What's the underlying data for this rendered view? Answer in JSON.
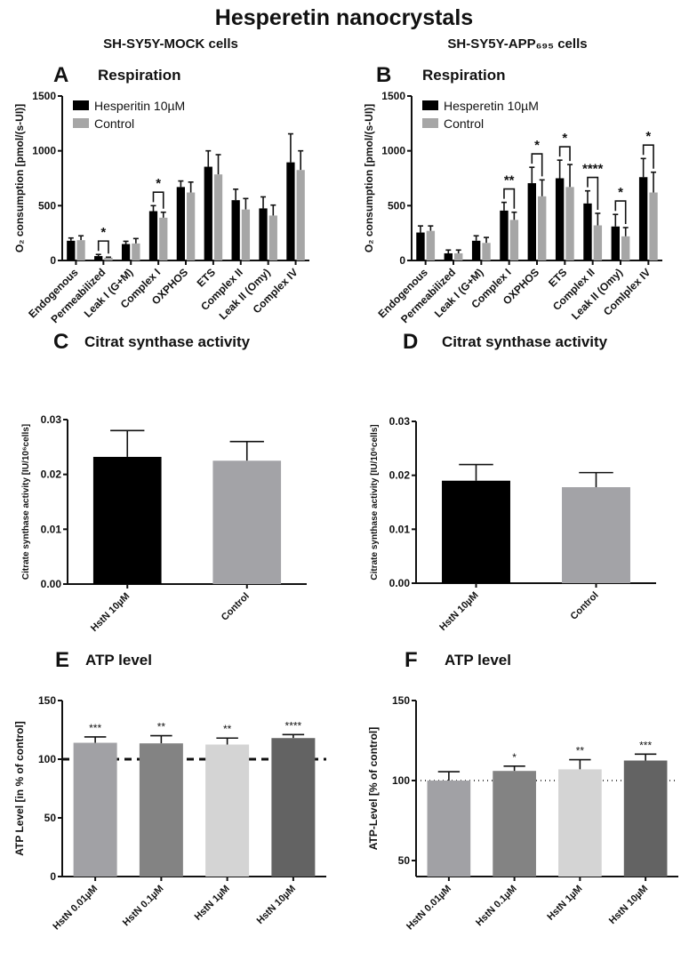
{
  "figure": {
    "title": "Hesperetin nanocrystals",
    "left_column": "SH-SY5Y-MOCK cells",
    "right_column": "SH-SY5Y-APP₆₉₅ cells"
  },
  "chart_data": [
    {
      "panel": "A",
      "title": "Respiration",
      "type": "bar",
      "ylabel": "O₂ consumption [pmol/(s-UI)]",
      "ylim": [
        0,
        1500
      ],
      "yticks": [
        "0",
        "500",
        "1000",
        "1500"
      ],
      "ytick_values": [
        0,
        500,
        1000,
        1500
      ],
      "legend": "top-left",
      "categories": [
        "Endogenous",
        "Permeabilized",
        "Leak I (G+M)",
        "Complex I",
        "OXPHOS",
        "ETS",
        "Complex II",
        "Leak II (Omy)",
        "Complex IV"
      ],
      "series": [
        {
          "name": "Hesperitin 10µM",
          "color": "#000000",
          "values": [
            180,
            40,
            150,
            450,
            670,
            855,
            550,
            475,
            895
          ],
          "error_top": [
            205,
            55,
            175,
            500,
            725,
            1000,
            650,
            580,
            1155
          ]
        },
        {
          "name": "Control",
          "color": "#a6a6a6",
          "values": [
            185,
            25,
            155,
            390,
            620,
            785,
            465,
            410,
            825
          ],
          "error_top": [
            225,
            30,
            200,
            440,
            715,
            965,
            565,
            505,
            1000
          ]
        }
      ],
      "significance": [
        "",
        "*",
        "",
        "*",
        "",
        "",
        "",
        "",
        ""
      ]
    },
    {
      "panel": "B",
      "title": "Respiration",
      "type": "bar",
      "ylabel": "O₂ consumption [pmol/(s-UI)]",
      "ylim": [
        0,
        1500
      ],
      "yticks": [
        "0",
        "500",
        "1000",
        "1500"
      ],
      "ytick_values": [
        0,
        500,
        1000,
        1500
      ],
      "legend": "top-left",
      "categories": [
        "Endogenous",
        "Permeabilized",
        "Leak I (G+M)",
        "Complex I",
        "OXPHOS",
        "ETS",
        "Complex II",
        "Leak II (Omy)",
        "Comlplex IV"
      ],
      "series": [
        {
          "name": "Hesperetin 10µM",
          "color": "#000000",
          "values": [
            255,
            65,
            180,
            455,
            705,
            750,
            520,
            310,
            760
          ],
          "error_top": [
            315,
            95,
            225,
            530,
            850,
            915,
            635,
            420,
            930
          ]
        },
        {
          "name": "Control",
          "color": "#a6a6a6",
          "values": [
            270,
            65,
            160,
            370,
            585,
            670,
            320,
            220,
            620
          ],
          "error_top": [
            315,
            95,
            210,
            440,
            735,
            875,
            430,
            300,
            805
          ]
        }
      ],
      "significance": [
        "",
        "",
        "",
        "**",
        "*",
        "*",
        "****",
        "*",
        "*"
      ]
    },
    {
      "panel": "C",
      "title": "Citrat synthase activity",
      "type": "bar",
      "ylabel": "Citrate synthase activity [IU/10⁶cells]",
      "ylim": [
        0,
        0.03
      ],
      "yticks": [
        "0.00",
        "0.01",
        "0.02",
        "0.03"
      ],
      "ytick_values": [
        0,
        0.01,
        0.02,
        0.03
      ],
      "categories": [
        "HstN 10µM",
        "Control"
      ],
      "colors": [
        "#000000",
        "#a3a3a7"
      ],
      "values": [
        0.0232,
        0.0225
      ],
      "error_top": [
        0.028,
        0.026
      ],
      "significance": [
        "",
        ""
      ]
    },
    {
      "panel": "D",
      "title": "Citrat synthase activity",
      "type": "bar",
      "ylabel": "Citrate synthase activity [IU/10⁶cells]",
      "ylim": [
        0,
        0.03
      ],
      "yticks": [
        "0.00",
        "0.01",
        "0.02",
        "0.03"
      ],
      "ytick_values": [
        0,
        0.01,
        0.02,
        0.03
      ],
      "categories": [
        "HstN 10µM",
        "Control"
      ],
      "colors": [
        "#000000",
        "#a3a3a7"
      ],
      "values": [
        0.019,
        0.0178
      ],
      "error_top": [
        0.022,
        0.0205
      ],
      "significance": [
        "",
        ""
      ]
    },
    {
      "panel": "E",
      "title": "ATP level",
      "type": "bar",
      "ylabel": "ATP Level [in % of control]",
      "ylim": [
        0,
        150
      ],
      "yticks": [
        "0",
        "50",
        "100",
        "150"
      ],
      "ytick_values": [
        0,
        50,
        100,
        150
      ],
      "reference_line": {
        "value": 100,
        "style": "dashed"
      },
      "categories": [
        "HstN 0.01µM",
        "HstN 0.1µM",
        "HstN 1µM",
        "HstN 10µM"
      ],
      "colors": [
        "#a1a1a5",
        "#838383",
        "#d4d4d4",
        "#636363"
      ],
      "values": [
        114,
        113.5,
        112.5,
        118
      ],
      "error_top": [
        119,
        120,
        118,
        121
      ],
      "significance": [
        "***",
        "**",
        "**",
        "****"
      ]
    },
    {
      "panel": "F",
      "title": "ATP level",
      "type": "bar",
      "ylabel": "ATP-Level [% of control]",
      "ylim": [
        40,
        150
      ],
      "yticks": [
        "50",
        "100",
        "150"
      ],
      "ytick_values": [
        50,
        100,
        150
      ],
      "reference_line": {
        "value": 100,
        "style": "dotted"
      },
      "categories": [
        "HstN 0.01µM",
        "HstN 0.1µM",
        "HstN 1µM",
        "HstN 10µM"
      ],
      "colors": [
        "#a1a1a5",
        "#838383",
        "#d4d4d4",
        "#636363"
      ],
      "values": [
        100,
        106,
        107,
        112.5
      ],
      "error_top": [
        105.5,
        109,
        113,
        116.5
      ],
      "significance": [
        "",
        "*",
        "**",
        "***"
      ]
    }
  ]
}
